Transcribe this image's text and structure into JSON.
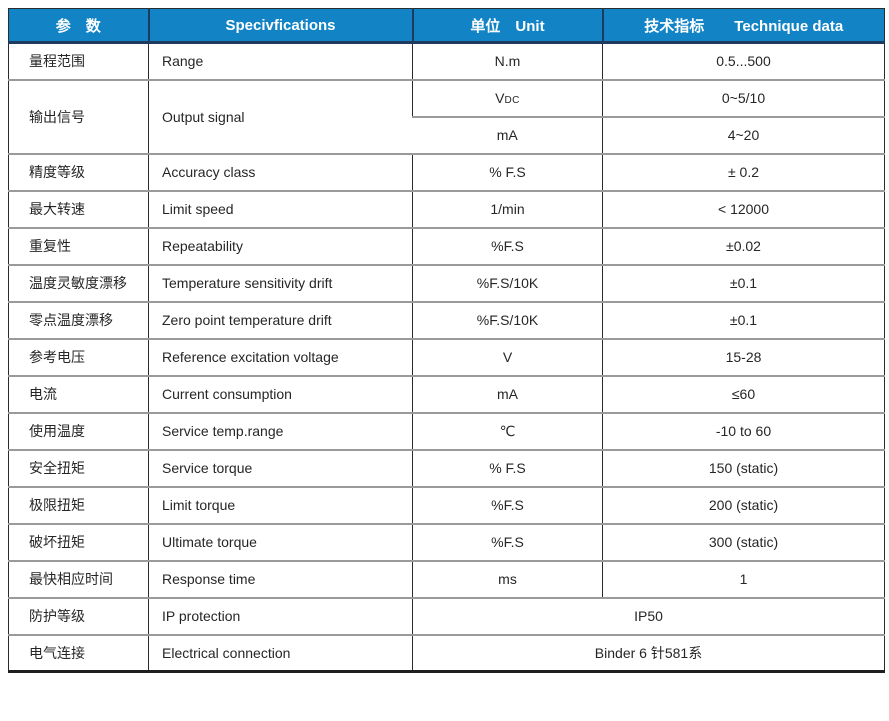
{
  "table": {
    "header": {
      "param": "参　数",
      "specifications": "Specivfications",
      "unit": "单位　Unit",
      "data": "技术指标　　Technique data"
    },
    "rows": [
      {
        "cn": "量程范围",
        "en": "Range",
        "unit": "N.m",
        "value": "0.5...500"
      },
      {
        "cn": "输出信号",
        "en": "Output signal",
        "subs": [
          {
            "unit": "V",
            "unit_small": "DC",
            "value": "0~5/10"
          },
          {
            "unit": "mA",
            "value": "4~20"
          }
        ]
      },
      {
        "cn": "精度等级",
        "en": "Accuracy class",
        "unit": "% F.S",
        "value": "± 0.2"
      },
      {
        "cn": "最大转速",
        "en": "Limit speed",
        "unit": "1/min",
        "value": "< 12000"
      },
      {
        "cn": "重复性",
        "en": "Repeatability",
        "unit": "%F.S",
        "value": "±0.02"
      },
      {
        "cn": "温度灵敏度漂移",
        "en": "Temperature sensitivity drift",
        "unit": "%F.S/10K",
        "value": "±0.1"
      },
      {
        "cn": "零点温度漂移",
        "en": "Zero point temperature drift",
        "unit": "%F.S/10K",
        "value": "±0.1"
      },
      {
        "cn": "参考电压",
        "en": "Reference excitation voltage",
        "unit": "V",
        "value": "15-28"
      },
      {
        "cn": "电流",
        "en": "Current consumption",
        "unit": "mA",
        "value": "≤60"
      },
      {
        "cn": "使用温度",
        "en": "Service temp.range",
        "unit": "℃",
        "value": "-10 to 60"
      },
      {
        "cn": "安全扭矩",
        "en": "Service torque",
        "unit": "% F.S",
        "value": "150 (static)"
      },
      {
        "cn": "极限扭矩",
        "en": "Limit torque",
        "unit": "%F.S",
        "value": "200 (static)"
      },
      {
        "cn": "破坏扭矩",
        "en": "Ultimate torque",
        "unit": "%F.S",
        "value": "300 (static)"
      },
      {
        "cn": "最快相应时间",
        "en": "Response time",
        "unit": "ms",
        "value": "1"
      },
      {
        "cn": "防护等级",
        "en": "IP protection",
        "merged_value": "IP50"
      },
      {
        "cn": "电气连接",
        "en": "Electrical connection",
        "merged_value": "Binder 6 针581系"
      }
    ],
    "colors": {
      "header_bg": "#1284c6",
      "header_text": "#ffffff",
      "header_divider": "#1e3a5f",
      "grid_horizontal": "#9a9a9a",
      "grid_vertical": "#2b2b2b",
      "body_text": "#262626"
    }
  }
}
